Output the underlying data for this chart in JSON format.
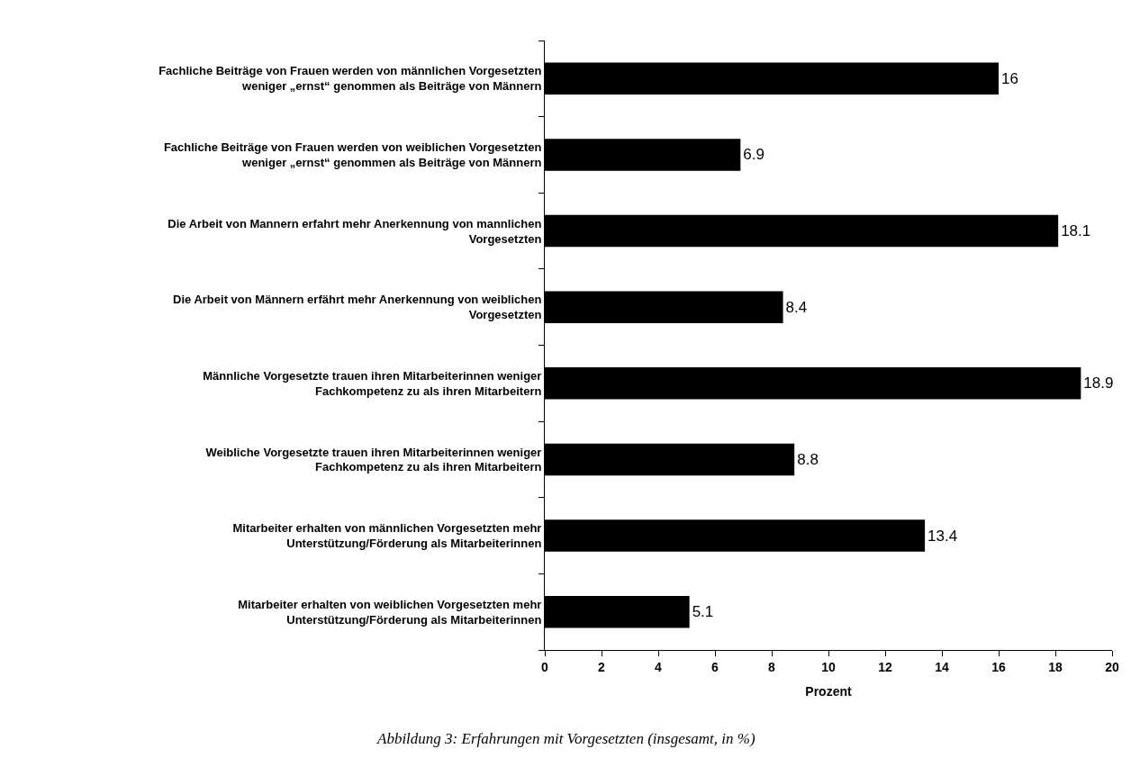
{
  "chart_data": {
    "type": "bar",
    "orientation": "horizontal",
    "xlabel": "Prozent",
    "categories": [
      "Fachliche Beiträge von Frauen werden von männlichen Vorgesetzten\nweniger „ernst“ genommen als Beiträge von Männern",
      "Fachliche Beiträge von Frauen werden von weiblichen Vorgesetzten\nweniger „ernst“ genommen als Beiträge von Männern",
      "Die Arbeit von Mannern erfahrt mehr Anerkennung von mannlichen\nVorgesetzten",
      "Die Arbeit von Männern erfährt mehr Anerkennung von weiblichen\nVorgesetzten",
      "Männliche Vorgesetzte trauen ihren Mitarbeiterinnen weniger\nFachkompetenz zu als ihren Mitarbeitern",
      "Weibliche Vorgesetzte trauen ihren Mitarbeiterinnen weniger\nFachkompetenz zu als ihren Mitarbeitern",
      "Mitarbeiter erhalten von männlichen Vorgesetzten mehr\nUnterstützung/Förderung als Mitarbeiterinnen",
      "Mitarbeiter erhalten von weiblichen Vorgesetzten mehr\nUnterstützung/Förderung als Mitarbeiterinnen"
    ],
    "values": [
      16,
      6.9,
      18.1,
      8.4,
      18.9,
      8.8,
      13.4,
      5.1
    ],
    "color": "#000000",
    "data_labels": true,
    "xlim": [
      0,
      20
    ],
    "xticks": [
      0,
      2,
      4,
      6,
      8,
      10,
      12,
      14,
      16,
      18,
      20
    ],
    "grid": false,
    "annotations": [
      "Abbildung 3: Erfahrungen mit Vorgesetzten (insgesamt, in %)"
    ]
  }
}
